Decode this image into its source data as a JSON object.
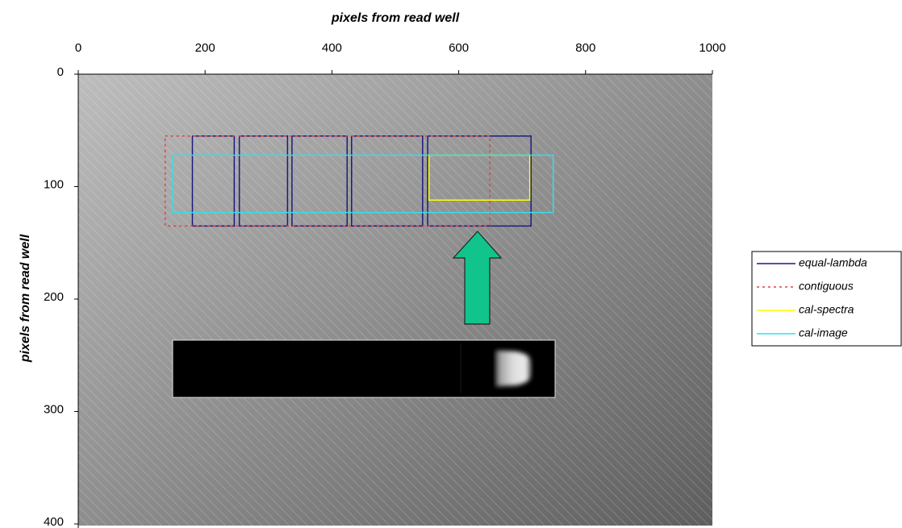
{
  "chart_data": {
    "type": "line",
    "x_label": "pixels from read well",
    "y_label": "pixels from read well",
    "xlim": [
      0,
      1000
    ],
    "xticks": [
      0,
      200,
      400,
      600,
      800,
      1000
    ],
    "ylim": [
      0,
      400
    ],
    "yticks": [
      0,
      100,
      200,
      300,
      400
    ],
    "y_inverted": true,
    "x_axis_position": "top",
    "legend": "right",
    "series": [
      {
        "name": "equal-lambda",
        "color": "#1c1c80",
        "dash": "solid",
        "x": [
          180,
          246,
          246,
          180,
          180,
          null,
          254,
          330,
          330,
          254,
          254,
          null,
          337,
          424,
          424,
          337,
          337,
          null,
          431,
          543,
          543,
          431,
          431,
          null,
          551,
          714,
          714,
          551,
          551
        ],
        "values": [
          55,
          55,
          135,
          135,
          55,
          null,
          55,
          55,
          135,
          135,
          55,
          null,
          55,
          55,
          135,
          135,
          55,
          null,
          55,
          55,
          135,
          135,
          55,
          null,
          55,
          55,
          135,
          135,
          55
        ]
      },
      {
        "name": "contiguous",
        "color": "#e04040",
        "dash": "dotted",
        "x": [
          137,
          649,
          649,
          137,
          137
        ],
        "values": [
          55,
          55,
          135,
          135,
          55
        ]
      },
      {
        "name": "cal-spectra",
        "color": "#ffff00",
        "dash": "solid",
        "x": [
          553,
          712,
          712,
          553,
          553
        ],
        "values": [
          72,
          72,
          112,
          112,
          72
        ]
      },
      {
        "name": "cal-image",
        "color": "#33e0e8",
        "dash": "solid",
        "x": [
          149,
          749,
          749,
          149,
          149
        ],
        "values": [
          72,
          72,
          123,
          123,
          72
        ]
      }
    ]
  }
}
